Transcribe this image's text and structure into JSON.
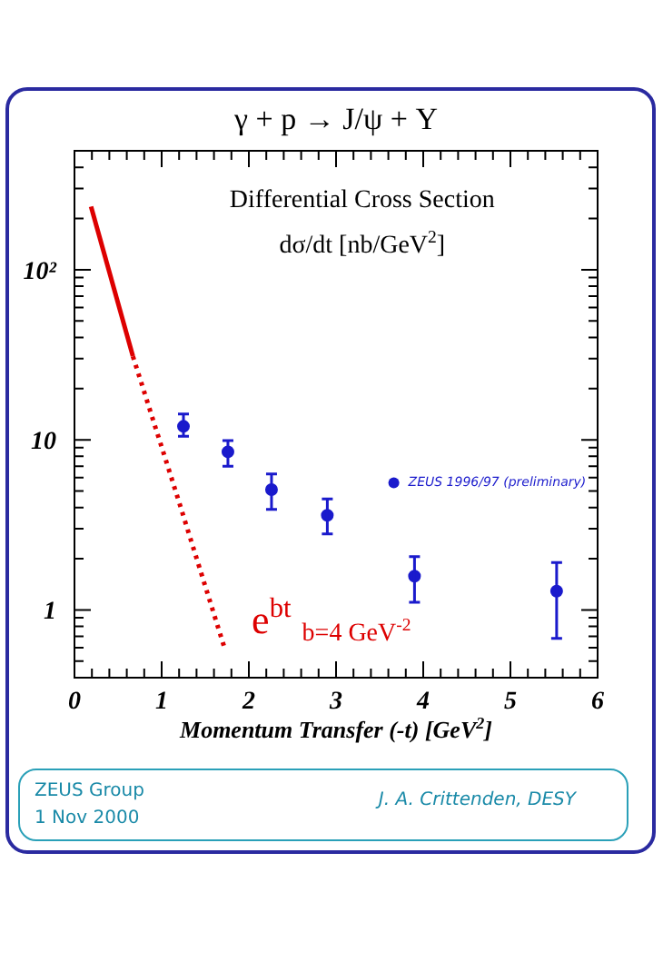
{
  "chart_data": {
    "type": "scatter",
    "title": "γ + p → J/ψ + Y",
    "subtitle": "Differential Cross Section",
    "ylabel": "dσ/dt [nb/GeV$^{2}$]",
    "xlabel": "Momentum Transfer (-t) [GeV$^{2}$]",
    "xlim": [
      0,
      6
    ],
    "xticks": [
      0,
      {
        "value": 0.2,
        "label": null
      },
      {
        "value": 0.4,
        "label": null
      },
      {
        "value": 0.6,
        "label": null
      },
      {
        "value": 0.8,
        "label": null
      },
      1,
      {
        "value": 1.2,
        "label": null
      },
      {
        "value": 1.4,
        "label": null
      },
      {
        "value": 1.6,
        "label": null
      },
      {
        "value": 1.8,
        "label": null
      },
      2,
      {
        "value": 2.2,
        "label": null
      },
      {
        "value": 2.4,
        "label": null
      },
      {
        "value": 2.6,
        "label": null
      },
      {
        "value": 2.8,
        "label": null
      },
      3,
      {
        "value": 3.2,
        "label": null
      },
      {
        "value": 3.4,
        "label": null
      },
      {
        "value": 3.6,
        "label": null
      },
      {
        "value": 3.8,
        "label": null
      },
      4,
      {
        "value": 4.2,
        "label": null
      },
      {
        "value": 4.4,
        "label": null
      },
      {
        "value": 4.6,
        "label": null
      },
      {
        "value": 4.8,
        "label": null
      },
      5,
      {
        "value": 5.2,
        "label": null
      },
      {
        "value": 5.4,
        "label": null
      },
      {
        "value": 5.6,
        "label": null
      },
      {
        "value": 5.8,
        "label": null
      },
      6
    ],
    "ylim": [
      0.4,
      500
    ],
    "log": "y",
    "yticks": [
      {
        "value": 0.4,
        "label": null
      },
      {
        "value": 0.5,
        "label": null
      },
      {
        "value": 0.6,
        "label": null
      },
      {
        "value": 0.7,
        "label": null
      },
      {
        "value": 0.8,
        "label": null
      },
      {
        "value": 0.9,
        "label": null
      },
      1,
      {
        "value": 2,
        "label": null
      },
      {
        "value": 3,
        "label": null
      },
      {
        "value": 4,
        "label": null
      },
      {
        "value": 5,
        "label": null
      },
      {
        "value": 6,
        "label": null
      },
      {
        "value": 7,
        "label": null
      },
      {
        "value": 8,
        "label": null
      },
      {
        "value": 9,
        "label": null
      },
      10,
      {
        "value": 20,
        "label": null
      },
      {
        "value": 30,
        "label": null
      },
      {
        "value": 40,
        "label": null
      },
      {
        "value": 50,
        "label": null
      },
      {
        "value": 60,
        "label": null
      },
      {
        "value": 70,
        "label": null
      },
      {
        "value": 80,
        "label": null
      },
      {
        "value": 90,
        "label": null
      },
      {
        "value": 100,
        "label": "10²"
      },
      {
        "value": 200,
        "label": null
      },
      {
        "value": 300,
        "label": null
      },
      {
        "value": 400,
        "label": null
      },
      {
        "value": 500,
        "label": null
      }
    ],
    "grid": false,
    "legend": "right",
    "series": [
      {
        "name": "ZEUS 1996/97 (preliminary)",
        "marker": "circle",
        "color": "#1a1acc",
        "x": [
          1.25,
          1.76,
          2.26,
          2.9,
          3.9,
          5.53
        ],
        "values": [
          12,
          8.5,
          5.1,
          3.6,
          1.58,
          1.29
        ],
        "errors": [
          [
            10.5,
            14.2
          ],
          [
            7.0,
            9.9
          ],
          [
            3.9,
            6.3
          ],
          [
            2.8,
            4.5
          ],
          [
            1.11,
            2.06
          ],
          [
            0.68,
            1.9
          ]
        ]
      },
      {
        "type": "line",
        "color": "#dd0000",
        "line_style": "solid",
        "x": [
          0.19,
          0.67
        ],
        "values": [
          235,
          31
        ]
      },
      {
        "type": "line",
        "color": "#dd0000",
        "line_style": "dotted",
        "x": [
          0.67,
          1.16,
          1.72
        ],
        "values": [
          31,
          5,
          0.6
        ]
      }
    ],
    "annotations": [
      "e$^{bt}$",
      "b=4 GeV$^{-2}$",
      "ZEUS Group",
      "1 Nov 2000",
      "J. A. Crittenden, DESY"
    ]
  }
}
